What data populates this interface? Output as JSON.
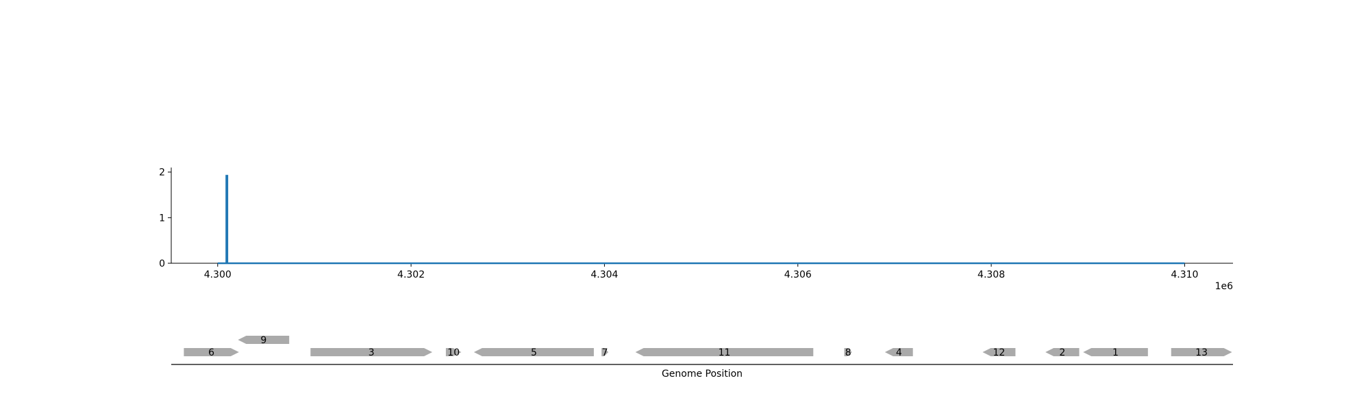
{
  "chart_data": [
    {
      "type": "line",
      "title": "",
      "xlabel": "",
      "ylabel": "",
      "x_offset_label": "1e6",
      "xlim": [
        4299520,
        4310500
      ],
      "ylim": [
        0,
        2.1
      ],
      "x_ticks": [
        4300000,
        4302000,
        4304000,
        4306000,
        4308000,
        4310000
      ],
      "x_tick_labels": [
        "4.300",
        "4.302",
        "4.304",
        "4.306",
        "4.308",
        "4.310"
      ],
      "y_ticks": [
        0,
        1,
        2
      ],
      "y_tick_labels": [
        "0",
        "1",
        "2"
      ],
      "grid": false,
      "series": [
        {
          "color": "#1f77b4",
          "x": [
            4300000,
            4300090,
            4300090,
            4300100,
            4300100,
            4310000
          ],
          "y": [
            0,
            0,
            1.92,
            1.92,
            0,
            0
          ]
        }
      ]
    },
    {
      "type": "gene-track",
      "xlabel": "Genome Position",
      "xlim": [
        4299520,
        4310500
      ],
      "genes": [
        {
          "label": "6",
          "start": 4299650,
          "end": 4300220,
          "strand": "+",
          "row": 0
        },
        {
          "label": "9",
          "start": 4300210,
          "end": 4300740,
          "strand": "-",
          "row": 1
        },
        {
          "label": "3",
          "start": 4300960,
          "end": 4302220,
          "strand": "+",
          "row": 0
        },
        {
          "label": "10",
          "start": 4302360,
          "end": 4302520,
          "strand": "+",
          "row": 0
        },
        {
          "label": "5",
          "start": 4302650,
          "end": 4303890,
          "strand": "-",
          "row": 0
        },
        {
          "label": "7",
          "start": 4303970,
          "end": 4304040,
          "strand": "+",
          "row": 0
        },
        {
          "label": "11",
          "start": 4304320,
          "end": 4306160,
          "strand": "-",
          "row": 0
        },
        {
          "label": "8",
          "start": 4306480,
          "end": 4306560,
          "strand": "+",
          "row": 0
        },
        {
          "label": "4",
          "start": 4306900,
          "end": 4307190,
          "strand": "-",
          "row": 0
        },
        {
          "label": "12",
          "start": 4307910,
          "end": 4308250,
          "strand": "-",
          "row": 0
        },
        {
          "label": "2",
          "start": 4308560,
          "end": 4308910,
          "strand": "-",
          "row": 0
        },
        {
          "label": "1",
          "start": 4308950,
          "end": 4309620,
          "strand": "-",
          "row": 0
        },
        {
          "label": "13",
          "start": 4309860,
          "end": 4310490,
          "strand": "+",
          "row": 0
        }
      ],
      "gene_color": "#aaaaaa"
    }
  ]
}
